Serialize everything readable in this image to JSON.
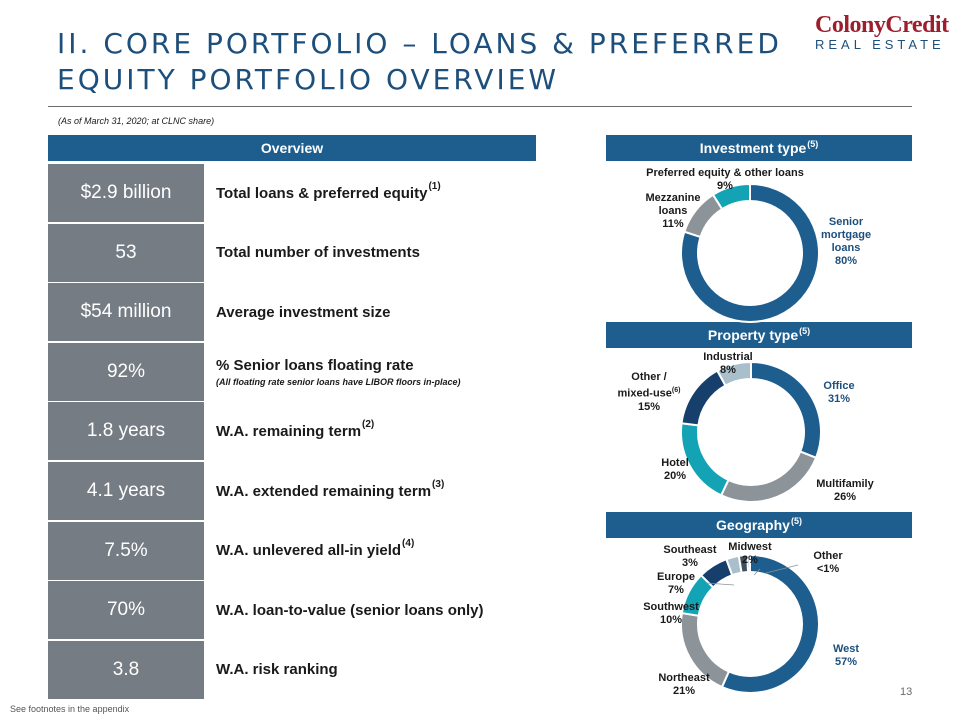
{
  "title": {
    "line1": "II. CORE PORTFOLIO – LOANS & PREFERRED",
    "line2": "EQUITY PORTFOLIO OVERVIEW"
  },
  "logo": {
    "top_a": "Colony",
    "top_b": "Credit",
    "bottom": "REAL ESTATE"
  },
  "subnote": "(As of March 31, 2020; at CLNC share)",
  "overview": {
    "header": "Overview",
    "rows": [
      {
        "value": "$2.9 billion",
        "label": "Total loans & preferred equity",
        "fn": "(1)",
        "sub": ""
      },
      {
        "value": "53",
        "label": "Total number of investments",
        "fn": "",
        "sub": ""
      },
      {
        "value": "$54 million",
        "label": "Average investment size",
        "fn": "",
        "sub": ""
      },
      {
        "value": "92%",
        "label": "% Senior loans floating rate",
        "fn": "",
        "sub": "(All floating rate senior loans have LIBOR floors in-place)"
      },
      {
        "value": "1.8 years",
        "label": "W.A. remaining term",
        "fn": "(2)",
        "sub": ""
      },
      {
        "value": "4.1 years",
        "label": "W.A. extended remaining term",
        "fn": "(3)",
        "sub": ""
      },
      {
        "value": "7.5%",
        "label": "W.A. unlevered all-in yield",
        "fn": "(4)",
        "sub": ""
      },
      {
        "value": "70%",
        "label": "W.A. loan-to-value (senior loans only)",
        "fn": "",
        "sub": ""
      },
      {
        "value": "3.8",
        "label": "W.A. risk ranking",
        "fn": "",
        "sub": ""
      }
    ]
  },
  "chart_data": [
    {
      "type": "pie",
      "title": "Investment type",
      "title_fn": "(5)",
      "slices": [
        {
          "name": "Senior mortgage loans",
          "value": 80,
          "label": "80%",
          "color": "#1d5e8f"
        },
        {
          "name": "Mezzanine loans",
          "value": 11,
          "label": "11%",
          "color": "#8c9399"
        },
        {
          "name": "Preferred equity & other loans",
          "value": 9,
          "label": "9%",
          "color": "#13a3b5"
        }
      ]
    },
    {
      "type": "pie",
      "title": "Property type",
      "title_fn": "(5)",
      "slices": [
        {
          "name": "Office",
          "value": 31,
          "label": "31%",
          "color": "#1d5e8f"
        },
        {
          "name": "Multifamily",
          "value": 26,
          "label": "26%",
          "color": "#8c9399"
        },
        {
          "name": "Hotel",
          "value": 20,
          "label": "20%",
          "color": "#13a3b5"
        },
        {
          "name": "Other / mixed-use",
          "value": 15,
          "label": "15%",
          "color": "#173f6b"
        },
        {
          "name": "Industrial",
          "value": 8,
          "label": "8%",
          "color": "#a9bfcc"
        }
      ]
    },
    {
      "type": "pie",
      "title": "Geography",
      "title_fn": "(5)",
      "slices": [
        {
          "name": "West",
          "value": 57,
          "label": "57%",
          "color": "#1d5e8f"
        },
        {
          "name": "Northeast",
          "value": 21,
          "label": "21%",
          "color": "#8c9399"
        },
        {
          "name": "Southwest",
          "value": 10,
          "label": "10%",
          "color": "#13a3b5"
        },
        {
          "name": "Europe",
          "value": 7,
          "label": "7%",
          "color": "#173f6b"
        },
        {
          "name": "Southeast",
          "value": 3,
          "label": "3%",
          "color": "#a9bfcc"
        },
        {
          "name": "Midwest",
          "value": 2,
          "label": "2%",
          "color": "#3f4f5c"
        },
        {
          "name": "Other",
          "value": 0.6,
          "label": "<1%",
          "color": "#6f97b6"
        }
      ]
    }
  ],
  "labels": {
    "inv_pref": "Preferred equity & other loans",
    "inv_pref_pct": "9%",
    "inv_mezz_a": "Mezzanine",
    "inv_mezz_b": "loans",
    "inv_mezz_pct": "11%",
    "inv_senior_a": "Senior",
    "inv_senior_b": "mortgage",
    "inv_senior_c": "loans",
    "inv_senior_pct": "80%",
    "prop_ind": "Industrial",
    "prop_ind_pct": "8%",
    "prop_other_a": "Other /",
    "prop_other_b": "mixed-use",
    "prop_other_fn": "(6)",
    "prop_other_pct": "15%",
    "prop_office": "Office",
    "prop_office_pct": "31%",
    "prop_hotel": "Hotel",
    "prop_hotel_pct": "20%",
    "prop_multi": "Multifamily",
    "prop_multi_pct": "26%",
    "geo_se": "Southeast",
    "geo_se_pct": "3%",
    "geo_mw": "Midwest",
    "geo_mw_pct": "2%",
    "geo_other": "Other",
    "geo_other_pct": "<1%",
    "geo_eu": "Europe",
    "geo_eu_pct": "7%",
    "geo_sw": "Southwest",
    "geo_sw_pct": "10%",
    "geo_west": "West",
    "geo_west_pct": "57%",
    "geo_ne": "Northeast",
    "geo_ne_pct": "21%"
  },
  "footer": "See footnotes in the appendix",
  "page_number": "13"
}
